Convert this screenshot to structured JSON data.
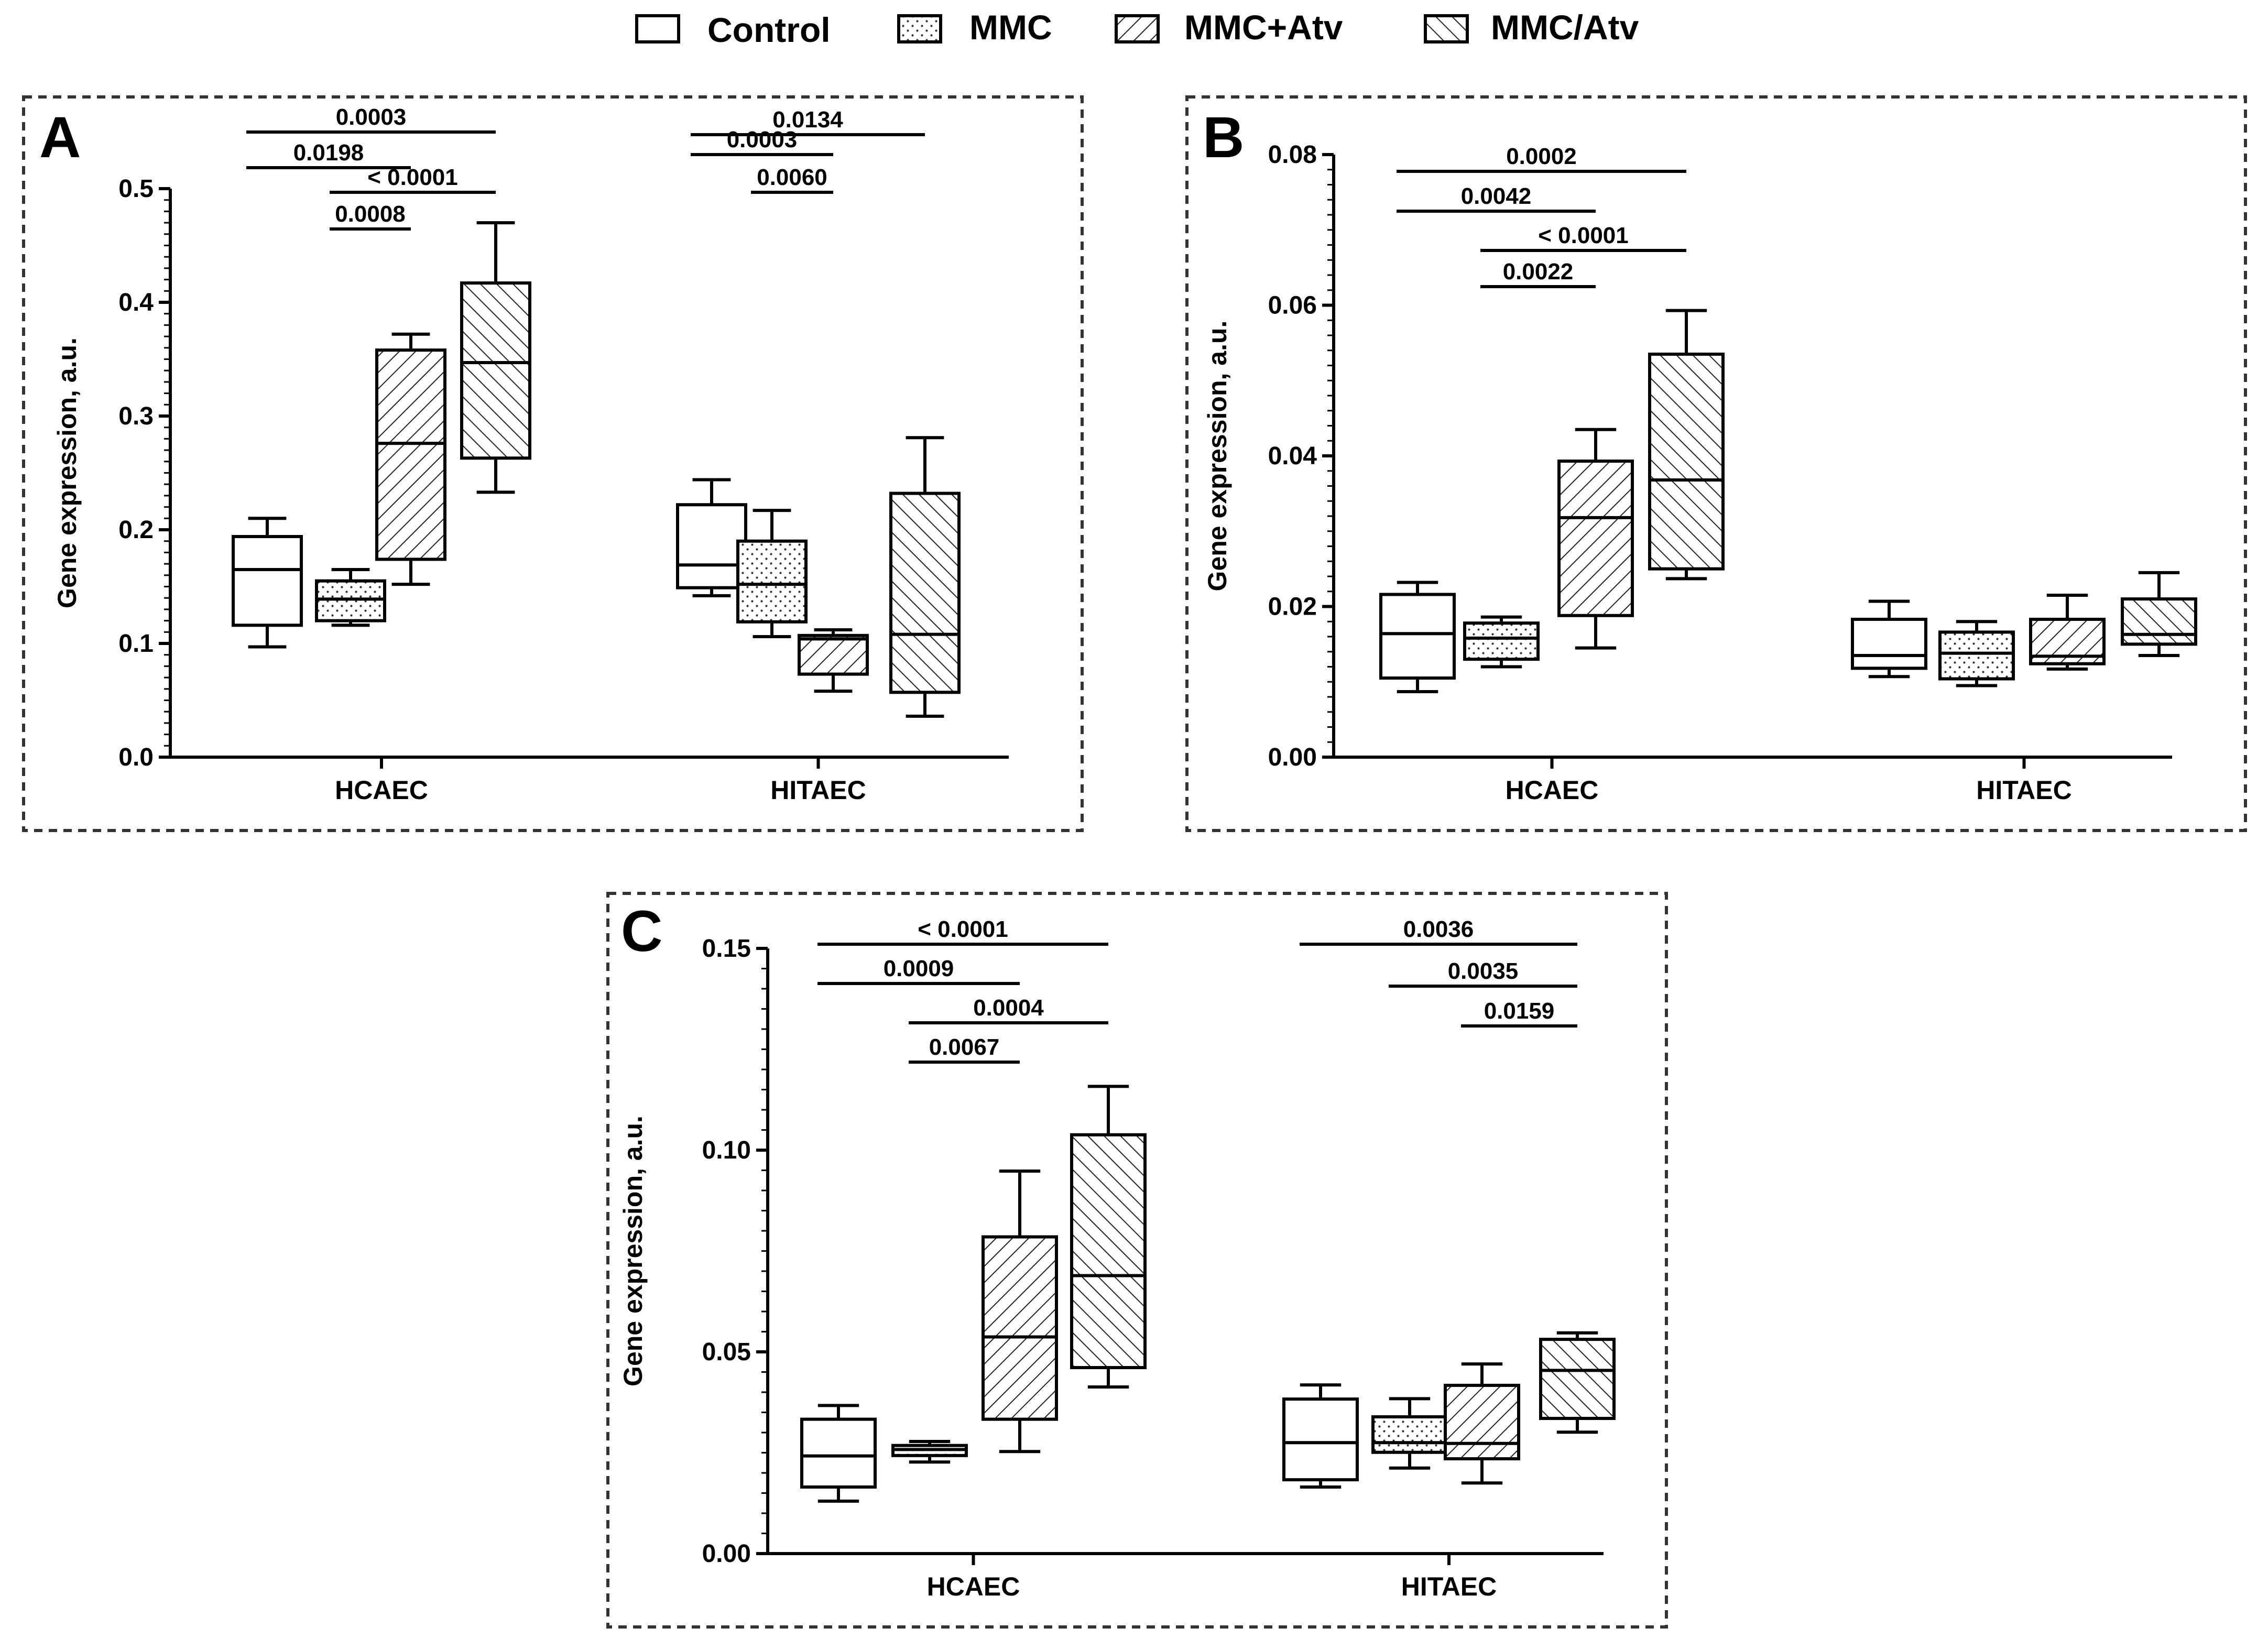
{
  "legend": [
    {
      "label": "Control",
      "pattern": "none"
    },
    {
      "label": "MMC",
      "pattern": "dots"
    },
    {
      "label": "MMC+Atv",
      "pattern": "hatch-up"
    },
    {
      "label": "MMC/Atv",
      "pattern": "hatch-down"
    }
  ],
  "chart_data": [
    {
      "panel": "A",
      "type": "box",
      "ylabel": "Gene expression, a.u.",
      "ylim": [
        0,
        0.5
      ],
      "yticks": [
        "0.0",
        "0.1",
        "0.2",
        "0.3",
        "0.4",
        "0.5"
      ],
      "categories": [
        "HCAEC",
        "HITAEC"
      ],
      "series_names": [
        "Control",
        "MMC",
        "MMC+Atv",
        "MMC/Atv"
      ],
      "boxes": {
        "HCAEC": [
          {
            "series": "Control",
            "min": 0.097,
            "q1": 0.116,
            "median": 0.165,
            "q3": 0.194,
            "max": 0.21
          },
          {
            "series": "MMC",
            "min": 0.116,
            "q1": 0.12,
            "median": 0.139,
            "q3": 0.155,
            "max": 0.165
          },
          {
            "series": "MMC+Atv",
            "min": 0.152,
            "q1": 0.174,
            "median": 0.276,
            "q3": 0.358,
            "max": 0.372
          },
          {
            "series": "MMC/Atv",
            "min": 0.233,
            "q1": 0.263,
            "median": 0.347,
            "q3": 0.417,
            "max": 0.47
          }
        ],
        "HITAEC": [
          {
            "series": "Control",
            "min": 0.142,
            "q1": 0.149,
            "median": 0.169,
            "q3": 0.222,
            "max": 0.244
          },
          {
            "series": "MMC",
            "min": 0.106,
            "q1": 0.119,
            "median": 0.152,
            "q3": 0.19,
            "max": 0.217
          },
          {
            "series": "MMC+Atv",
            "min": 0.058,
            "q1": 0.073,
            "median": 0.104,
            "q3": 0.107,
            "max": 0.112
          },
          {
            "series": "MMC/Atv",
            "min": 0.036,
            "q1": 0.057,
            "median": 0.108,
            "q3": 0.232,
            "max": 0.281
          }
        ]
      },
      "comparisons": [
        {
          "group": "HCAEC",
          "from": 0,
          "to": 3,
          "label": "0.0003"
        },
        {
          "group": "HCAEC",
          "from": 0,
          "to": 2,
          "label": "0.0198"
        },
        {
          "group": "HCAEC",
          "from": 1,
          "to": 3,
          "label": "< 0.0001"
        },
        {
          "group": "HCAEC",
          "from": 1,
          "to": 2,
          "label": "0.0008"
        },
        {
          "group": "HITAEC",
          "from": 0,
          "to": 3,
          "label": "0.0134"
        },
        {
          "group": "HITAEC",
          "from": 0,
          "to": 2,
          "label": "0.0003"
        },
        {
          "group": "HITAEC",
          "from": 1,
          "to": 2,
          "label": "0.0060"
        }
      ]
    },
    {
      "panel": "B",
      "type": "box",
      "ylabel": "Gene expression, a.u.",
      "ylim": [
        0,
        0.08
      ],
      "yticks": [
        "0.00",
        "0.02",
        "0.04",
        "0.06",
        "0.08"
      ],
      "categories": [
        "HCAEC",
        "HITAEC"
      ],
      "series_names": [
        "Control",
        "MMC",
        "MMC+Atv",
        "MMC/Atv"
      ],
      "boxes": {
        "HCAEC": [
          {
            "series": "Control",
            "min": 0.0087,
            "q1": 0.0105,
            "median": 0.0164,
            "q3": 0.0216,
            "max": 0.0232
          },
          {
            "series": "MMC",
            "min": 0.012,
            "q1": 0.013,
            "median": 0.0158,
            "q3": 0.0178,
            "max": 0.0186
          },
          {
            "series": "MMC+Atv",
            "min": 0.0145,
            "q1": 0.0188,
            "median": 0.0318,
            "q3": 0.0393,
            "max": 0.0435
          },
          {
            "series": "MMC/Atv",
            "min": 0.0237,
            "q1": 0.025,
            "median": 0.0368,
            "q3": 0.0535,
            "max": 0.0593
          }
        ],
        "HITAEC": [
          {
            "series": "Control",
            "min": 0.0107,
            "q1": 0.0118,
            "median": 0.0135,
            "q3": 0.0183,
            "max": 0.0207
          },
          {
            "series": "MMC",
            "min": 0.0095,
            "q1": 0.0104,
            "median": 0.0138,
            "q3": 0.0166,
            "max": 0.018
          },
          {
            "series": "MMC+Atv",
            "min": 0.0117,
            "q1": 0.0124,
            "median": 0.0134,
            "q3": 0.0183,
            "max": 0.0215
          },
          {
            "series": "MMC/Atv",
            "min": 0.0135,
            "q1": 0.015,
            "median": 0.0163,
            "q3": 0.021,
            "max": 0.0245
          }
        ]
      },
      "comparisons": [
        {
          "group": "HCAEC",
          "from": 0,
          "to": 3,
          "label": "0.0002"
        },
        {
          "group": "HCAEC",
          "from": 0,
          "to": 2,
          "label": "0.0042"
        },
        {
          "group": "HCAEC",
          "from": 1,
          "to": 3,
          "label": "< 0.0001"
        },
        {
          "group": "HCAEC",
          "from": 1,
          "to": 2,
          "label": "0.0022"
        }
      ]
    },
    {
      "panel": "C",
      "type": "box",
      "ylabel": "Gene expression, a.u.",
      "ylim": [
        0,
        0.15
      ],
      "yticks": [
        "0.00",
        "0.05",
        "0.10",
        "0.15"
      ],
      "categories": [
        "HCAEC",
        "HITAEC"
      ],
      "series_names": [
        "Control",
        "MMC",
        "MMC+Atv",
        "MMC/Atv"
      ],
      "boxes": {
        "HCAEC": [
          {
            "series": "Control",
            "min": 0.013,
            "q1": 0.0165,
            "median": 0.0242,
            "q3": 0.0333,
            "max": 0.0367
          },
          {
            "series": "MMC",
            "min": 0.0227,
            "q1": 0.0243,
            "median": 0.0258,
            "q3": 0.0268,
            "max": 0.0278
          },
          {
            "series": "MMC+Atv",
            "min": 0.0253,
            "q1": 0.0333,
            "median": 0.0537,
            "q3": 0.0785,
            "max": 0.0948
          },
          {
            "series": "MMC/Atv",
            "min": 0.0413,
            "q1": 0.0461,
            "median": 0.0689,
            "q3": 0.1038,
            "max": 0.1158
          }
        ],
        "HITAEC": [
          {
            "series": "Control",
            "min": 0.0165,
            "q1": 0.0183,
            "median": 0.0275,
            "q3": 0.0383,
            "max": 0.0418
          },
          {
            "series": "MMC",
            "min": 0.0212,
            "q1": 0.0251,
            "median": 0.0275,
            "q3": 0.0339,
            "max": 0.0384
          },
          {
            "series": "MMC+Atv",
            "min": 0.0175,
            "q1": 0.0235,
            "median": 0.0273,
            "q3": 0.0417,
            "max": 0.047
          },
          {
            "series": "MMC/Atv",
            "min": 0.0301,
            "q1": 0.0335,
            "median": 0.0454,
            "q3": 0.0531,
            "max": 0.0547
          }
        ]
      },
      "comparisons": [
        {
          "group": "HCAEC",
          "from": 0,
          "to": 3,
          "label": "< 0.0001"
        },
        {
          "group": "HCAEC",
          "from": 0,
          "to": 2,
          "label": "0.0009"
        },
        {
          "group": "HCAEC",
          "from": 1,
          "to": 3,
          "label": "0.0004"
        },
        {
          "group": "HCAEC",
          "from": 1,
          "to": 2,
          "label": "0.0067"
        },
        {
          "group": "HITAEC",
          "from": 0,
          "to": 3,
          "label": "0.0036"
        },
        {
          "group": "HITAEC",
          "from": 1,
          "to": 3,
          "label": "0.0035"
        },
        {
          "group": "HITAEC",
          "from": 2,
          "to": 3,
          "label": "0.0159"
        }
      ]
    }
  ]
}
